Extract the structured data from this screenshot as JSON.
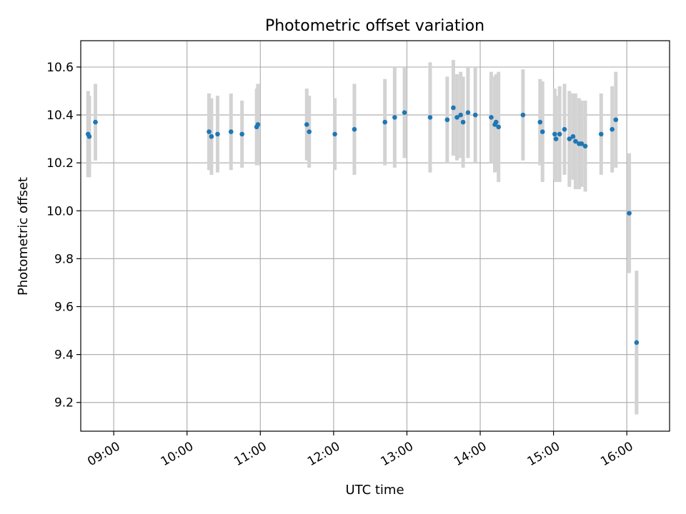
{
  "chart_data": {
    "type": "scatter",
    "title": "Photometric offset variation",
    "xlabel": "UTC time",
    "ylabel": "Photometric offset",
    "x_tick_labels": [
      "09:00",
      "10:00",
      "11:00",
      "12:00",
      "13:00",
      "14:00",
      "15:00",
      "16:00"
    ],
    "y_tick_labels": [
      "9.2",
      "9.4",
      "9.6",
      "9.8",
      "10.0",
      "10.2",
      "10.4",
      "10.6"
    ],
    "y_ticks": [
      9.2,
      9.4,
      9.6,
      9.8,
      10.0,
      10.2,
      10.4,
      10.6
    ],
    "xlim": [
      "08:33",
      "16:35"
    ],
    "ylim": [
      9.08,
      10.71
    ],
    "grid": true,
    "colors": {
      "points": "#1f77b4",
      "errorbars": "#d3d3d3",
      "grid": "#b0b0b0"
    },
    "series": [
      {
        "x": [
          "08:39",
          "08:40",
          "08:45",
          "10:18",
          "10:20",
          "10:25",
          "10:36",
          "10:45",
          "10:57",
          "10:58",
          "11:38",
          "11:40",
          "12:01",
          "12:17",
          "12:42",
          "12:50",
          "12:58",
          "13:19",
          "13:33",
          "13:38",
          "13:41",
          "13:44",
          "13:46",
          "13:50",
          "13:56",
          "14:09",
          "14:12",
          "14:13",
          "14:15",
          "14:35",
          "14:49",
          "14:51",
          "15:01",
          "15:02",
          "15:05",
          "15:09",
          "15:13",
          "15:16",
          "15:18",
          "15:21",
          "15:23",
          "15:26",
          "15:39",
          "15:48",
          "15:51",
          "16:02",
          "16:08"
        ],
        "y": [
          10.32,
          10.31,
          10.37,
          10.33,
          10.31,
          10.32,
          10.33,
          10.32,
          10.35,
          10.36,
          10.36,
          10.33,
          10.32,
          10.34,
          10.37,
          10.39,
          10.41,
          10.39,
          10.38,
          10.43,
          10.39,
          10.4,
          10.37,
          10.41,
          10.4,
          10.39,
          10.36,
          10.37,
          10.35,
          10.4,
          10.37,
          10.33,
          10.32,
          10.3,
          10.32,
          10.34,
          10.3,
          10.31,
          10.29,
          10.28,
          10.28,
          10.27,
          10.32,
          10.34,
          10.38,
          9.99,
          9.45
        ],
        "err": [
          0.18,
          0.17,
          0.16,
          0.16,
          0.16,
          0.16,
          0.16,
          0.14,
          0.16,
          0.17,
          0.15,
          0.15,
          0.15,
          0.19,
          0.18,
          0.21,
          0.19,
          0.23,
          0.18,
          0.2,
          0.18,
          0.18,
          0.19,
          0.19,
          0.2,
          0.19,
          0.2,
          0.2,
          0.23,
          0.19,
          0.18,
          0.21,
          0.19,
          0.18,
          0.2,
          0.19,
          0.2,
          0.18,
          0.2,
          0.19,
          0.18,
          0.19,
          0.17,
          0.18,
          0.2,
          0.25,
          0.3
        ]
      }
    ]
  }
}
